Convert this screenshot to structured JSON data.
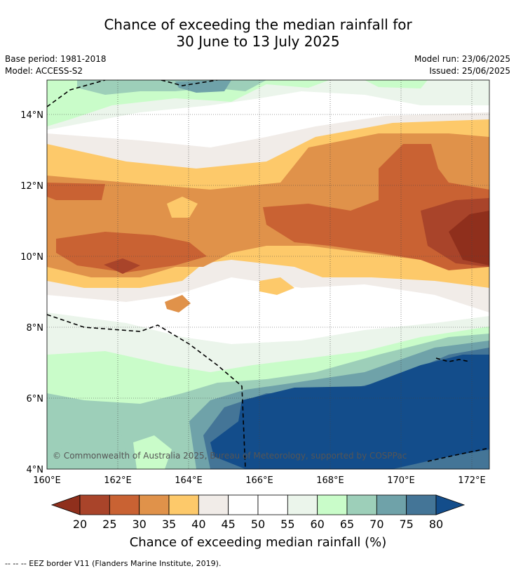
{
  "title_line1": "Chance of exceeding the median rainfall for",
  "title_line2": "30 June to 13 July 2025",
  "base_period": "Base period: 1981-2018",
  "model": "Model: ACCESS-S2",
  "model_run": "Model run: 23/06/2025",
  "issued": "Issued: 25/06/2025",
  "copyright": "© Commonwealth of Australia 2025, Bureau of Meteorology, supported by COSPPac",
  "x_ticks": [
    "160°E",
    "162°E",
    "164°E",
    "166°E",
    "168°E",
    "170°E",
    "172°E"
  ],
  "y_ticks": [
    "14°N",
    "12°N",
    "10°N",
    "8°N",
    "6°N",
    "4°N"
  ],
  "colorbar": {
    "labels": [
      "20",
      "25",
      "30",
      "35",
      "40",
      "45",
      "50",
      "55",
      "60",
      "65",
      "70",
      "75",
      "80"
    ],
    "colors": [
      "#a9442a",
      "#c96233",
      "#e0924a",
      "#fdc96a",
      "#f1ece8",
      "#ffffff",
      "#ffffff",
      "#ebf5eb",
      "#c9fcc9",
      "#9dcfb9",
      "#6fa2a9",
      "#447597",
      "#134d8b"
    ],
    "low_color": "#8f2f1c",
    "title": "Chance of exceeding median rainfall (%)"
  },
  "footer": "--  --  -- EEZ border V11 (Flanders Marine Institute, 2019)."
}
